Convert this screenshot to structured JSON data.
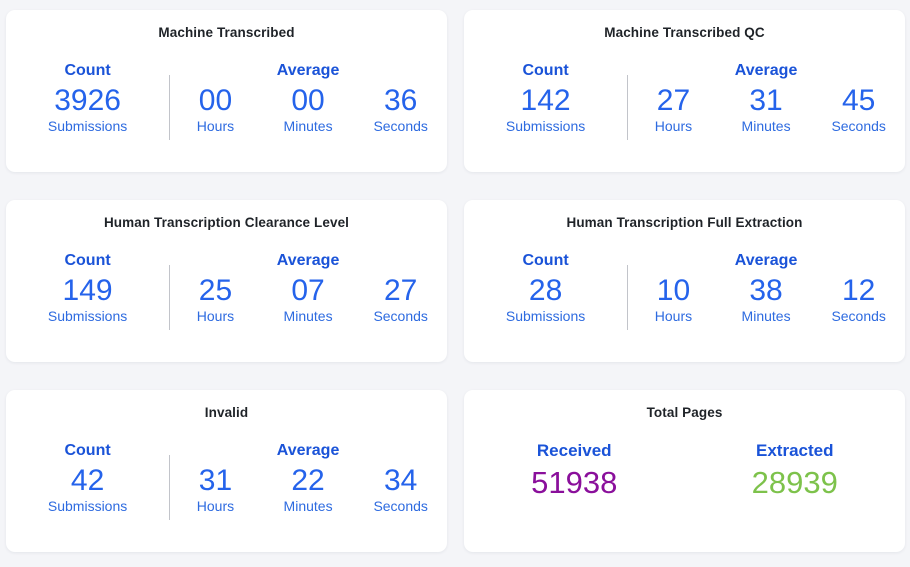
{
  "page": {
    "background_color": "#f4f5f8",
    "card_color": "#ffffff"
  },
  "colors": {
    "title_text": "#1f2328",
    "header_blue": "#1a53d8",
    "value_blue": "#2563eb",
    "label_blue": "#2e6be0",
    "divider_gray": "#c2c4ca",
    "received_purple": "#8a0f9b",
    "extracted_green": "#7dc24b"
  },
  "stat_cards": [
    {
      "title": "Machine Transcribed",
      "count": {
        "label": "Count",
        "value": "3926",
        "unit": "Submissions"
      },
      "average": {
        "label": "Average",
        "parts": [
          {
            "value": "00",
            "unit": "Hours"
          },
          {
            "value": "00",
            "unit": "Minutes"
          },
          {
            "value": "36",
            "unit": "Seconds"
          }
        ]
      }
    },
    {
      "title": "Machine Transcribed QC",
      "count": {
        "label": "Count",
        "value": "142",
        "unit": "Submissions"
      },
      "average": {
        "label": "Average",
        "parts": [
          {
            "value": "27",
            "unit": "Hours"
          },
          {
            "value": "31",
            "unit": "Minutes"
          },
          {
            "value": "45",
            "unit": "Seconds"
          }
        ]
      }
    },
    {
      "title": "Human Transcription Clearance Level",
      "count": {
        "label": "Count",
        "value": "149",
        "unit": "Submissions"
      },
      "average": {
        "label": "Average",
        "parts": [
          {
            "value": "25",
            "unit": "Hours"
          },
          {
            "value": "07",
            "unit": "Minutes"
          },
          {
            "value": "27",
            "unit": "Seconds"
          }
        ]
      }
    },
    {
      "title": "Human Transcription Full Extraction",
      "count": {
        "label": "Count",
        "value": "28",
        "unit": "Submissions"
      },
      "average": {
        "label": "Average",
        "parts": [
          {
            "value": "10",
            "unit": "Hours"
          },
          {
            "value": "38",
            "unit": "Minutes"
          },
          {
            "value": "12",
            "unit": "Seconds"
          }
        ]
      }
    },
    {
      "title": "Invalid",
      "count": {
        "label": "Count",
        "value": "42",
        "unit": "Submissions"
      },
      "average": {
        "label": "Average",
        "parts": [
          {
            "value": "31",
            "unit": "Hours"
          },
          {
            "value": "22",
            "unit": "Minutes"
          },
          {
            "value": "34",
            "unit": "Seconds"
          }
        ]
      }
    }
  ],
  "total_pages_card": {
    "title": "Total Pages",
    "received": {
      "label": "Received",
      "value": "51938"
    },
    "extracted": {
      "label": "Extracted",
      "value": "28939"
    }
  }
}
